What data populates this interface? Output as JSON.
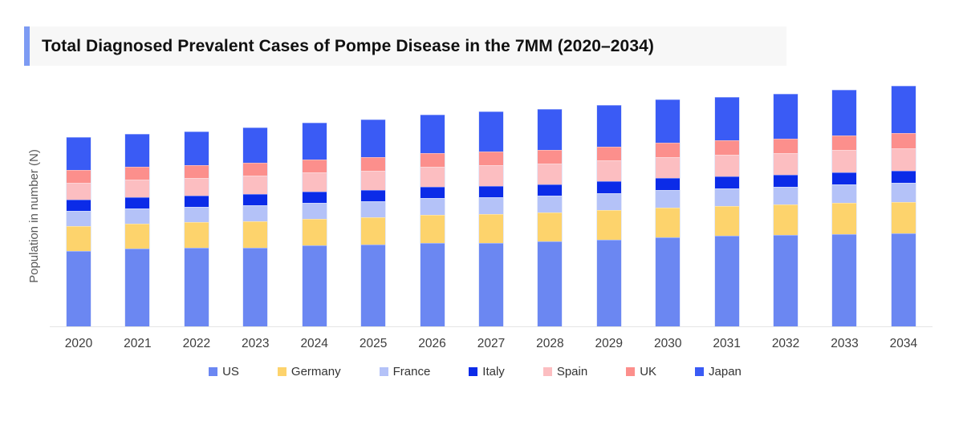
{
  "title": {
    "text": "Total Diagnosed Prevalent Cases of Pompe Disease in the 7MM (2020–2034)",
    "accent_color": "#7d9bf3",
    "background_color": "#f7f7f7"
  },
  "y_axis": {
    "label": "Population in number (N)",
    "ticks": []
  },
  "chart_data": {
    "type": "bar",
    "stacked": true,
    "title": "Total Diagnosed Prevalent Cases of Pompe Disease in the 7MM (2020–2034)",
    "xlabel": "",
    "ylabel": "Population in number (N)",
    "legend_position": "bottom",
    "grid": false,
    "value_note": "y-axis has no numeric tick labels; values are relative heights estimated from the plot (pixels)",
    "categories": [
      "2020",
      "2021",
      "2022",
      "2023",
      "2024",
      "2025",
      "2026",
      "2027",
      "2028",
      "2029",
      "2030",
      "2031",
      "2032",
      "2033",
      "2034"
    ],
    "series": [
      {
        "name": "US",
        "color": "#6b87f2",
        "values": [
          94,
          97,
          98,
          98,
          101,
          102,
          104,
          104,
          106,
          108,
          111,
          113,
          114,
          115,
          116
        ]
      },
      {
        "name": "Germany",
        "color": "#fdd36c",
        "values": [
          31,
          31,
          32,
          33,
          33,
          34,
          35,
          36,
          36,
          37,
          37,
          37,
          38,
          39,
          39
        ]
      },
      {
        "name": "France",
        "color": "#b4c2f8",
        "values": [
          19,
          19,
          19,
          20,
          20,
          20,
          21,
          21,
          21,
          21,
          22,
          22,
          22,
          23,
          24
        ]
      },
      {
        "name": "Italy",
        "color": "#0b2be8",
        "values": [
          14,
          14,
          14,
          14,
          14,
          14,
          14,
          14,
          14,
          15,
          15,
          15,
          15,
          15,
          15
        ]
      },
      {
        "name": "Spain",
        "color": "#fcbec1",
        "values": [
          21,
          22,
          22,
          23,
          24,
          24,
          25,
          26,
          26,
          26,
          26,
          27,
          27,
          28,
          28
        ]
      },
      {
        "name": "UK",
        "color": "#fc8f8c",
        "values": [
          16,
          16,
          16,
          16,
          16,
          17,
          17,
          17,
          17,
          17,
          18,
          18,
          18,
          18,
          19
        ]
      },
      {
        "name": "Japan",
        "color": "#3a5bf5",
        "values": [
          41,
          41,
          42,
          44,
          46,
          47,
          48,
          50,
          51,
          52,
          54,
          54,
          56,
          57,
          59
        ]
      }
    ]
  }
}
